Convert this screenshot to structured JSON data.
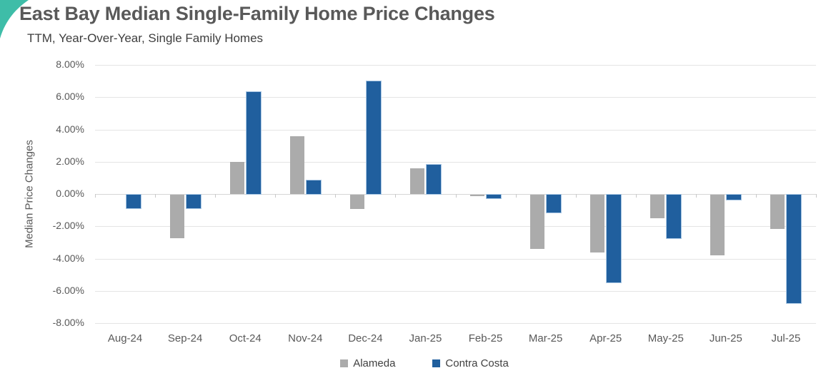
{
  "page": {
    "background": "#FFFFFF"
  },
  "decor": {
    "corner_accent_color": "#3EBDA8"
  },
  "header": {
    "title": "East Bay Median Single-Family Home Price Changes",
    "subtitle": "TTM, Year-Over-Year, Single Family Homes"
  },
  "chart_data": {
    "type": "bar",
    "title": "East Bay Median Single-Family Home Price Changes",
    "subtitle": "TTM, Year-Over-Year, Single Family Homes",
    "xlabel": "",
    "ylabel": "Median Price Changes",
    "value_unit": "percent",
    "ylim": [
      -8,
      8
    ],
    "ytick_step": 2,
    "ytick_labels": [
      "8.00%",
      "6.00%",
      "4.00%",
      "2.00%",
      "0.00%",
      "-2.00%",
      "-4.00%",
      "-6.00%",
      "-8.00%"
    ],
    "grid": true,
    "legend_position": "bottom-center",
    "categories": [
      "Aug-24",
      "Sep-24",
      "Oct-24",
      "Nov-24",
      "Dec-24",
      "Jan-25",
      "Feb-25",
      "Mar-25",
      "Apr-25",
      "May-25",
      "Jun-25",
      "Jul-25"
    ],
    "series": [
      {
        "name": "Alameda",
        "color": "#ABABAB",
        "values": [
          0,
          -2.7,
          2.0,
          3.6,
          -0.9,
          1.6,
          -0.1,
          -3.35,
          -3.6,
          -1.45,
          -3.75,
          -2.1
        ]
      },
      {
        "name": "Contra Costa",
        "color": "#205F9E",
        "border_color": "#A9C7E4",
        "values": [
          -0.85,
          -0.85,
          6.3,
          0.85,
          7.0,
          1.8,
          -0.2,
          -1.1,
          -5.45,
          -2.7,
          -0.3,
          -6.7
        ]
      }
    ]
  },
  "colors": {
    "gridline": "#E4E4E4",
    "axis_line": "#D6D6D6",
    "tick_text": "#595959",
    "title_text": "#595959",
    "subtitle_text": "#3D3D3D",
    "legend_text": "#404040"
  }
}
